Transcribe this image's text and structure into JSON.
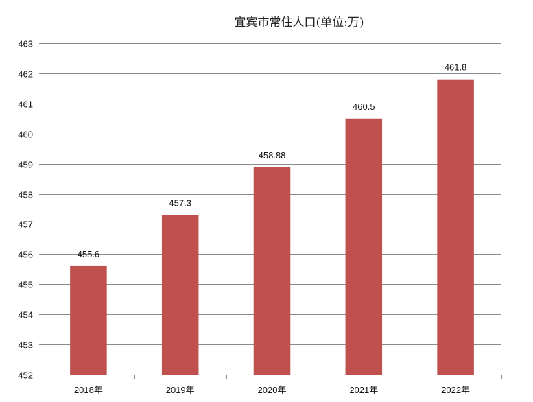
{
  "chart_data": {
    "type": "bar",
    "title": "宜宾市常住人口(单位:万)",
    "categories": [
      "2018年",
      "2019年",
      "2020年",
      "2021年",
      "2022年"
    ],
    "values": [
      455.6,
      457.3,
      458.88,
      460.5,
      461.8
    ],
    "data_labels": [
      "455.6",
      "457.3",
      "458.88",
      "460.5",
      "461.8"
    ],
    "ylim": [
      452,
      463
    ],
    "yticks": [
      "452",
      "453",
      "454",
      "455",
      "456",
      "457",
      "458",
      "459",
      "460",
      "461",
      "462",
      "463"
    ],
    "xlabel": "",
    "ylabel": "",
    "grid": true,
    "legend": "none",
    "bar_color": "#c0504d"
  }
}
